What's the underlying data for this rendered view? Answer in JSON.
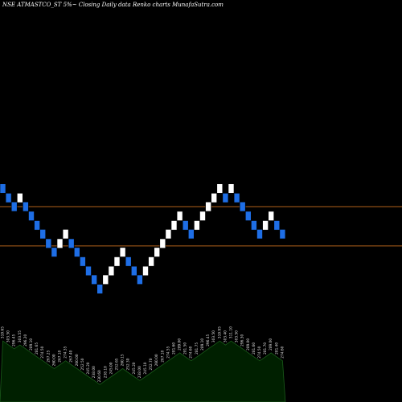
{
  "chart_data": {
    "type": "renko",
    "title": "NSE ATMASTCO_ST 5%",
    "subtitle": "Closing Daily data  Renko  charts MunafaSutra.com",
    "colors": {
      "background": "#000000",
      "up_brick": "#ffffff",
      "down_brick": "#1e6ee6",
      "ref_line": "#b0601a",
      "volume_fill": "#002000",
      "volume_stroke": "#1a5c1a",
      "label_text": "#dddddd"
    },
    "reference_lines": [
      {
        "name": "upper",
        "value": 296.5
      },
      {
        "name": "lower",
        "value": 265.0
      }
    ],
    "y_range": [
      140,
      330
    ],
    "bricks": [
      {
        "dir": "down",
        "value": 311.0
      },
      {
        "dir": "down",
        "value": 303.5
      },
      {
        "dir": "down",
        "value": 296.5
      },
      {
        "dir": "up",
        "value": 303.5
      },
      {
        "dir": "down",
        "value": 296.5
      },
      {
        "dir": "down",
        "value": 289.0
      },
      {
        "dir": "down",
        "value": 281.5
      },
      {
        "dir": "down",
        "value": 274.5
      },
      {
        "dir": "down",
        "value": 267.0
      },
      {
        "dir": "down",
        "value": 260.0
      },
      {
        "dir": "up",
        "value": 267.0
      },
      {
        "dir": "up",
        "value": 274.5
      },
      {
        "dir": "down",
        "value": 267.0
      },
      {
        "dir": "down",
        "value": 260.0
      },
      {
        "dir": "down",
        "value": 252.5
      },
      {
        "dir": "down",
        "value": 245.0
      },
      {
        "dir": "down",
        "value": 238.0
      },
      {
        "dir": "down",
        "value": 230.5
      },
      {
        "dir": "up",
        "value": 238.0
      },
      {
        "dir": "up",
        "value": 245.0
      },
      {
        "dir": "up",
        "value": 252.5
      },
      {
        "dir": "up",
        "value": 260.0
      },
      {
        "dir": "down",
        "value": 252.5
      },
      {
        "dir": "down",
        "value": 245.0
      },
      {
        "dir": "down",
        "value": 238.0
      },
      {
        "dir": "up",
        "value": 245.0
      },
      {
        "dir": "up",
        "value": 252.5
      },
      {
        "dir": "up",
        "value": 260.0
      },
      {
        "dir": "up",
        "value": 267.0
      },
      {
        "dir": "up",
        "value": 274.5
      },
      {
        "dir": "up",
        "value": 281.5
      },
      {
        "dir": "up",
        "value": 289.0
      },
      {
        "dir": "down",
        "value": 281.5
      },
      {
        "dir": "down",
        "value": 274.5
      },
      {
        "dir": "up",
        "value": 281.5
      },
      {
        "dir": "up",
        "value": 289.0
      },
      {
        "dir": "up",
        "value": 296.5
      },
      {
        "dir": "up",
        "value": 303.5
      },
      {
        "dir": "up",
        "value": 311.0
      },
      {
        "dir": "down",
        "value": 303.5
      },
      {
        "dir": "up",
        "value": 311.0
      },
      {
        "dir": "down",
        "value": 303.5
      },
      {
        "dir": "down",
        "value": 296.5
      },
      {
        "dir": "down",
        "value": 289.0
      },
      {
        "dir": "down",
        "value": 281.5
      },
      {
        "dir": "down",
        "value": 274.5
      },
      {
        "dir": "up",
        "value": 281.5
      },
      {
        "dir": "up",
        "value": 289.0
      },
      {
        "dir": "down",
        "value": 281.5
      },
      {
        "dir": "down",
        "value": 274.5
      }
    ],
    "volume_labels": [
      "310.65",
      "303.50",
      "296.45",
      "303.55",
      "296.20",
      "289.10",
      "281.65",
      "274.50",
      "267.25",
      "260.00",
      "267.10",
      "274.35",
      "267.40",
      "260.00",
      "252.50",
      "245.20",
      "238.00",
      "230.60",
      "238.10",
      "245.00",
      "252.65",
      "260.15",
      "252.30",
      "245.20",
      "238.00",
      "245.10",
      "252.70",
      "260.00",
      "267.10",
      "274.55",
      "281.60",
      "289.00",
      "281.50",
      "274.60",
      "281.75",
      "289.10",
      "296.45",
      "303.50",
      "310.95",
      "303.40",
      "311.10",
      "303.50",
      "296.30",
      "289.00",
      "281.60",
      "274.50",
      "281.70",
      "289.00",
      "281.40",
      "274.60"
    ]
  }
}
